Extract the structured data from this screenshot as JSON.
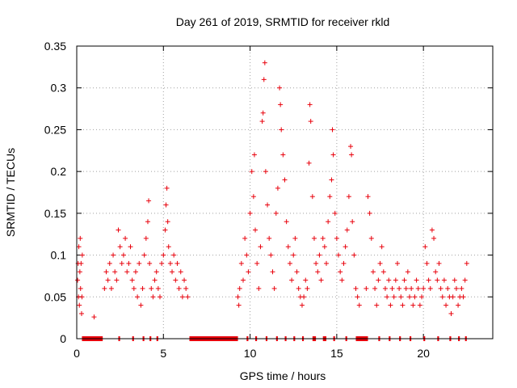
{
  "chart_data": {
    "type": "scatter",
    "title": "Day 261 of 2019, SRMTID for receiver rkld",
    "xlabel": "GPS time / hours",
    "ylabel": "SRMTID / TECUs",
    "xlim": [
      0,
      24
    ],
    "ylim": [
      0,
      0.35
    ],
    "xticks": [
      0,
      5,
      10,
      15,
      20
    ],
    "xtick_labels": [
      "0",
      "5",
      "10",
      "15",
      "20"
    ],
    "yticks": [
      0,
      0.05,
      0.1,
      0.15,
      0.2,
      0.25,
      0.3,
      0.35
    ],
    "ytick_labels": [
      "0",
      "0.05",
      "0.1",
      "0.15",
      "0.2",
      "0.25",
      "0.3",
      "0.35"
    ],
    "grid": true,
    "marker": "+",
    "color": "#e8000b",
    "series": [
      {
        "name": "SRMTID",
        "points": [
          [
            0.05,
            0.07
          ],
          [
            0.08,
            0.09
          ],
          [
            0.1,
            0.05
          ],
          [
            0.12,
            0.11
          ],
          [
            0.15,
            0.04
          ],
          [
            0.18,
            0.08
          ],
          [
            0.2,
            0.12
          ],
          [
            0.22,
            0.06
          ],
          [
            0.25,
            0.09
          ],
          [
            0.28,
            0.03
          ],
          [
            0.3,
            0.05
          ],
          [
            0.32,
            0.1
          ],
          [
            1.0,
            0.026
          ],
          [
            1.6,
            0.06
          ],
          [
            1.7,
            0.08
          ],
          [
            1.8,
            0.07
          ],
          [
            1.9,
            0.09
          ],
          [
            2.0,
            0.06
          ],
          [
            2.1,
            0.1
          ],
          [
            2.2,
            0.08
          ],
          [
            2.3,
            0.07
          ],
          [
            2.4,
            0.13
          ],
          [
            2.5,
            0.11
          ],
          [
            2.6,
            0.09
          ],
          [
            2.7,
            0.1
          ],
          [
            2.8,
            0.12
          ],
          [
            2.9,
            0.08
          ],
          [
            3.0,
            0.09
          ],
          [
            3.1,
            0.11
          ],
          [
            3.2,
            0.07
          ],
          [
            3.3,
            0.06
          ],
          [
            3.4,
            0.08
          ],
          [
            3.5,
            0.05
          ],
          [
            3.6,
            0.09
          ],
          [
            3.7,
            0.04
          ],
          [
            3.8,
            0.06
          ],
          [
            3.9,
            0.1
          ],
          [
            4.0,
            0.12
          ],
          [
            4.1,
            0.14
          ],
          [
            4.15,
            0.165
          ],
          [
            4.2,
            0.09
          ],
          [
            4.3,
            0.06
          ],
          [
            4.4,
            0.05
          ],
          [
            4.5,
            0.07
          ],
          [
            4.6,
            0.08
          ],
          [
            4.7,
            0.06
          ],
          [
            4.8,
            0.05
          ],
          [
            4.9,
            0.09
          ],
          [
            5.0,
            0.1
          ],
          [
            5.1,
            0.13
          ],
          [
            5.15,
            0.16
          ],
          [
            5.2,
            0.18
          ],
          [
            5.25,
            0.14
          ],
          [
            5.3,
            0.11
          ],
          [
            5.4,
            0.09
          ],
          [
            5.5,
            0.08
          ],
          [
            5.6,
            0.1
          ],
          [
            5.7,
            0.07
          ],
          [
            5.8,
            0.09
          ],
          [
            5.9,
            0.06
          ],
          [
            6.0,
            0.08
          ],
          [
            6.1,
            0.05
          ],
          [
            6.2,
            0.07
          ],
          [
            6.3,
            0.06
          ],
          [
            6.4,
            0.05
          ],
          [
            9.3,
            0.05
          ],
          [
            9.35,
            0.04
          ],
          [
            9.4,
            0.06
          ],
          [
            9.5,
            0.09
          ],
          [
            9.6,
            0.07
          ],
          [
            9.7,
            0.12
          ],
          [
            9.8,
            0.1
          ],
          [
            9.9,
            0.08
          ],
          [
            10.0,
            0.15
          ],
          [
            10.1,
            0.2
          ],
          [
            10.2,
            0.17
          ],
          [
            10.25,
            0.22
          ],
          [
            10.3,
            0.13
          ],
          [
            10.4,
            0.09
          ],
          [
            10.5,
            0.06
          ],
          [
            10.6,
            0.11
          ],
          [
            10.7,
            0.26
          ],
          [
            10.75,
            0.27
          ],
          [
            10.8,
            0.31
          ],
          [
            10.85,
            0.33
          ],
          [
            10.9,
            0.2
          ],
          [
            11.0,
            0.16
          ],
          [
            11.1,
            0.12
          ],
          [
            11.2,
            0.1
          ],
          [
            11.3,
            0.08
          ],
          [
            11.4,
            0.06
          ],
          [
            11.5,
            0.15
          ],
          [
            11.6,
            0.18
          ],
          [
            11.7,
            0.3
          ],
          [
            11.75,
            0.28
          ],
          [
            11.8,
            0.25
          ],
          [
            11.9,
            0.22
          ],
          [
            12.0,
            0.19
          ],
          [
            12.1,
            0.14
          ],
          [
            12.2,
            0.11
          ],
          [
            12.3,
            0.09
          ],
          [
            12.4,
            0.07
          ],
          [
            12.5,
            0.1
          ],
          [
            12.6,
            0.12
          ],
          [
            12.7,
            0.08
          ],
          [
            12.8,
            0.06
          ],
          [
            12.9,
            0.05
          ],
          [
            13.0,
            0.04
          ],
          [
            13.1,
            0.05
          ],
          [
            13.2,
            0.07
          ],
          [
            13.3,
            0.06
          ],
          [
            13.4,
            0.21
          ],
          [
            13.45,
            0.28
          ],
          [
            13.5,
            0.26
          ],
          [
            13.6,
            0.17
          ],
          [
            13.7,
            0.12
          ],
          [
            13.8,
            0.09
          ],
          [
            13.9,
            0.08
          ],
          [
            14.0,
            0.1
          ],
          [
            14.1,
            0.07
          ],
          [
            14.2,
            0.12
          ],
          [
            14.3,
            0.11
          ],
          [
            14.4,
            0.09
          ],
          [
            14.5,
            0.14
          ],
          [
            14.6,
            0.17
          ],
          [
            14.7,
            0.19
          ],
          [
            14.75,
            0.25
          ],
          [
            14.8,
            0.22
          ],
          [
            14.9,
            0.15
          ],
          [
            15.0,
            0.12
          ],
          [
            15.1,
            0.1
          ],
          [
            15.2,
            0.08
          ],
          [
            15.3,
            0.07
          ],
          [
            15.4,
            0.09
          ],
          [
            15.5,
            0.11
          ],
          [
            15.6,
            0.13
          ],
          [
            15.7,
            0.17
          ],
          [
            15.8,
            0.23
          ],
          [
            15.85,
            0.22
          ],
          [
            15.9,
            0.14
          ],
          [
            16.0,
            0.1
          ],
          [
            16.1,
            0.06
          ],
          [
            16.2,
            0.05
          ],
          [
            16.3,
            0.04
          ],
          [
            16.7,
            0.06
          ],
          [
            16.8,
            0.17
          ],
          [
            16.9,
            0.15
          ],
          [
            17.0,
            0.12
          ],
          [
            17.1,
            0.08
          ],
          [
            17.2,
            0.06
          ],
          [
            17.3,
            0.04
          ],
          [
            17.4,
            0.07
          ],
          [
            17.5,
            0.09
          ],
          [
            17.6,
            0.11
          ],
          [
            17.7,
            0.08
          ],
          [
            17.8,
            0.06
          ],
          [
            17.9,
            0.05
          ],
          [
            18.0,
            0.07
          ],
          [
            18.1,
            0.04
          ],
          [
            18.2,
            0.06
          ],
          [
            18.3,
            0.05
          ],
          [
            18.4,
            0.07
          ],
          [
            18.5,
            0.09
          ],
          [
            18.6,
            0.06
          ],
          [
            18.7,
            0.05
          ],
          [
            18.8,
            0.04
          ],
          [
            18.9,
            0.07
          ],
          [
            19.0,
            0.06
          ],
          [
            19.1,
            0.08
          ],
          [
            19.2,
            0.05
          ],
          [
            19.3,
            0.06
          ],
          [
            19.4,
            0.04
          ],
          [
            19.5,
            0.05
          ],
          [
            19.6,
            0.07
          ],
          [
            19.7,
            0.06
          ],
          [
            19.8,
            0.04
          ],
          [
            19.9,
            0.05
          ],
          [
            20.0,
            0.06
          ],
          [
            20.1,
            0.11
          ],
          [
            20.2,
            0.09
          ],
          [
            20.3,
            0.07
          ],
          [
            20.4,
            0.06
          ],
          [
            20.5,
            0.13
          ],
          [
            20.6,
            0.12
          ],
          [
            20.7,
            0.08
          ],
          [
            20.8,
            0.07
          ],
          [
            20.9,
            0.09
          ],
          [
            21.0,
            0.06
          ],
          [
            21.1,
            0.05
          ],
          [
            21.2,
            0.07
          ],
          [
            21.3,
            0.04
          ],
          [
            21.4,
            0.06
          ],
          [
            21.5,
            0.05
          ],
          [
            21.6,
            0.03
          ],
          [
            21.7,
            0.05
          ],
          [
            21.8,
            0.07
          ],
          [
            21.9,
            0.06
          ],
          [
            22.0,
            0.04
          ],
          [
            22.1,
            0.05
          ],
          [
            22.2,
            0.06
          ],
          [
            22.3,
            0.05
          ],
          [
            22.4,
            0.07
          ],
          [
            22.5,
            0.09
          ]
        ]
      }
    ],
    "zero_ranges": [
      [
        0.3,
        1.5
      ],
      [
        2.4,
        2.5
      ],
      [
        3.2,
        3.3
      ],
      [
        3.8,
        3.9
      ],
      [
        4.2,
        4.3
      ],
      [
        4.6,
        4.7
      ],
      [
        6.5,
        9.3
      ],
      [
        9.8,
        9.9
      ],
      [
        10.3,
        10.4
      ],
      [
        10.9,
        11.0
      ],
      [
        11.5,
        11.6
      ],
      [
        12.0,
        12.1
      ],
      [
        12.5,
        12.6
      ],
      [
        13.0,
        13.1
      ],
      [
        13.6,
        13.8
      ],
      [
        14.2,
        14.4
      ],
      [
        14.8,
        14.9
      ],
      [
        15.5,
        15.6
      ],
      [
        16.1,
        16.8
      ],
      [
        17.4,
        17.5
      ],
      [
        18.0,
        18.1
      ],
      [
        18.6,
        18.7
      ],
      [
        19.2,
        19.3
      ],
      [
        20.0,
        20.1
      ],
      [
        20.8,
        20.9
      ],
      [
        21.5,
        21.6
      ],
      [
        22.0,
        22.1
      ],
      [
        22.4,
        22.5
      ]
    ]
  }
}
